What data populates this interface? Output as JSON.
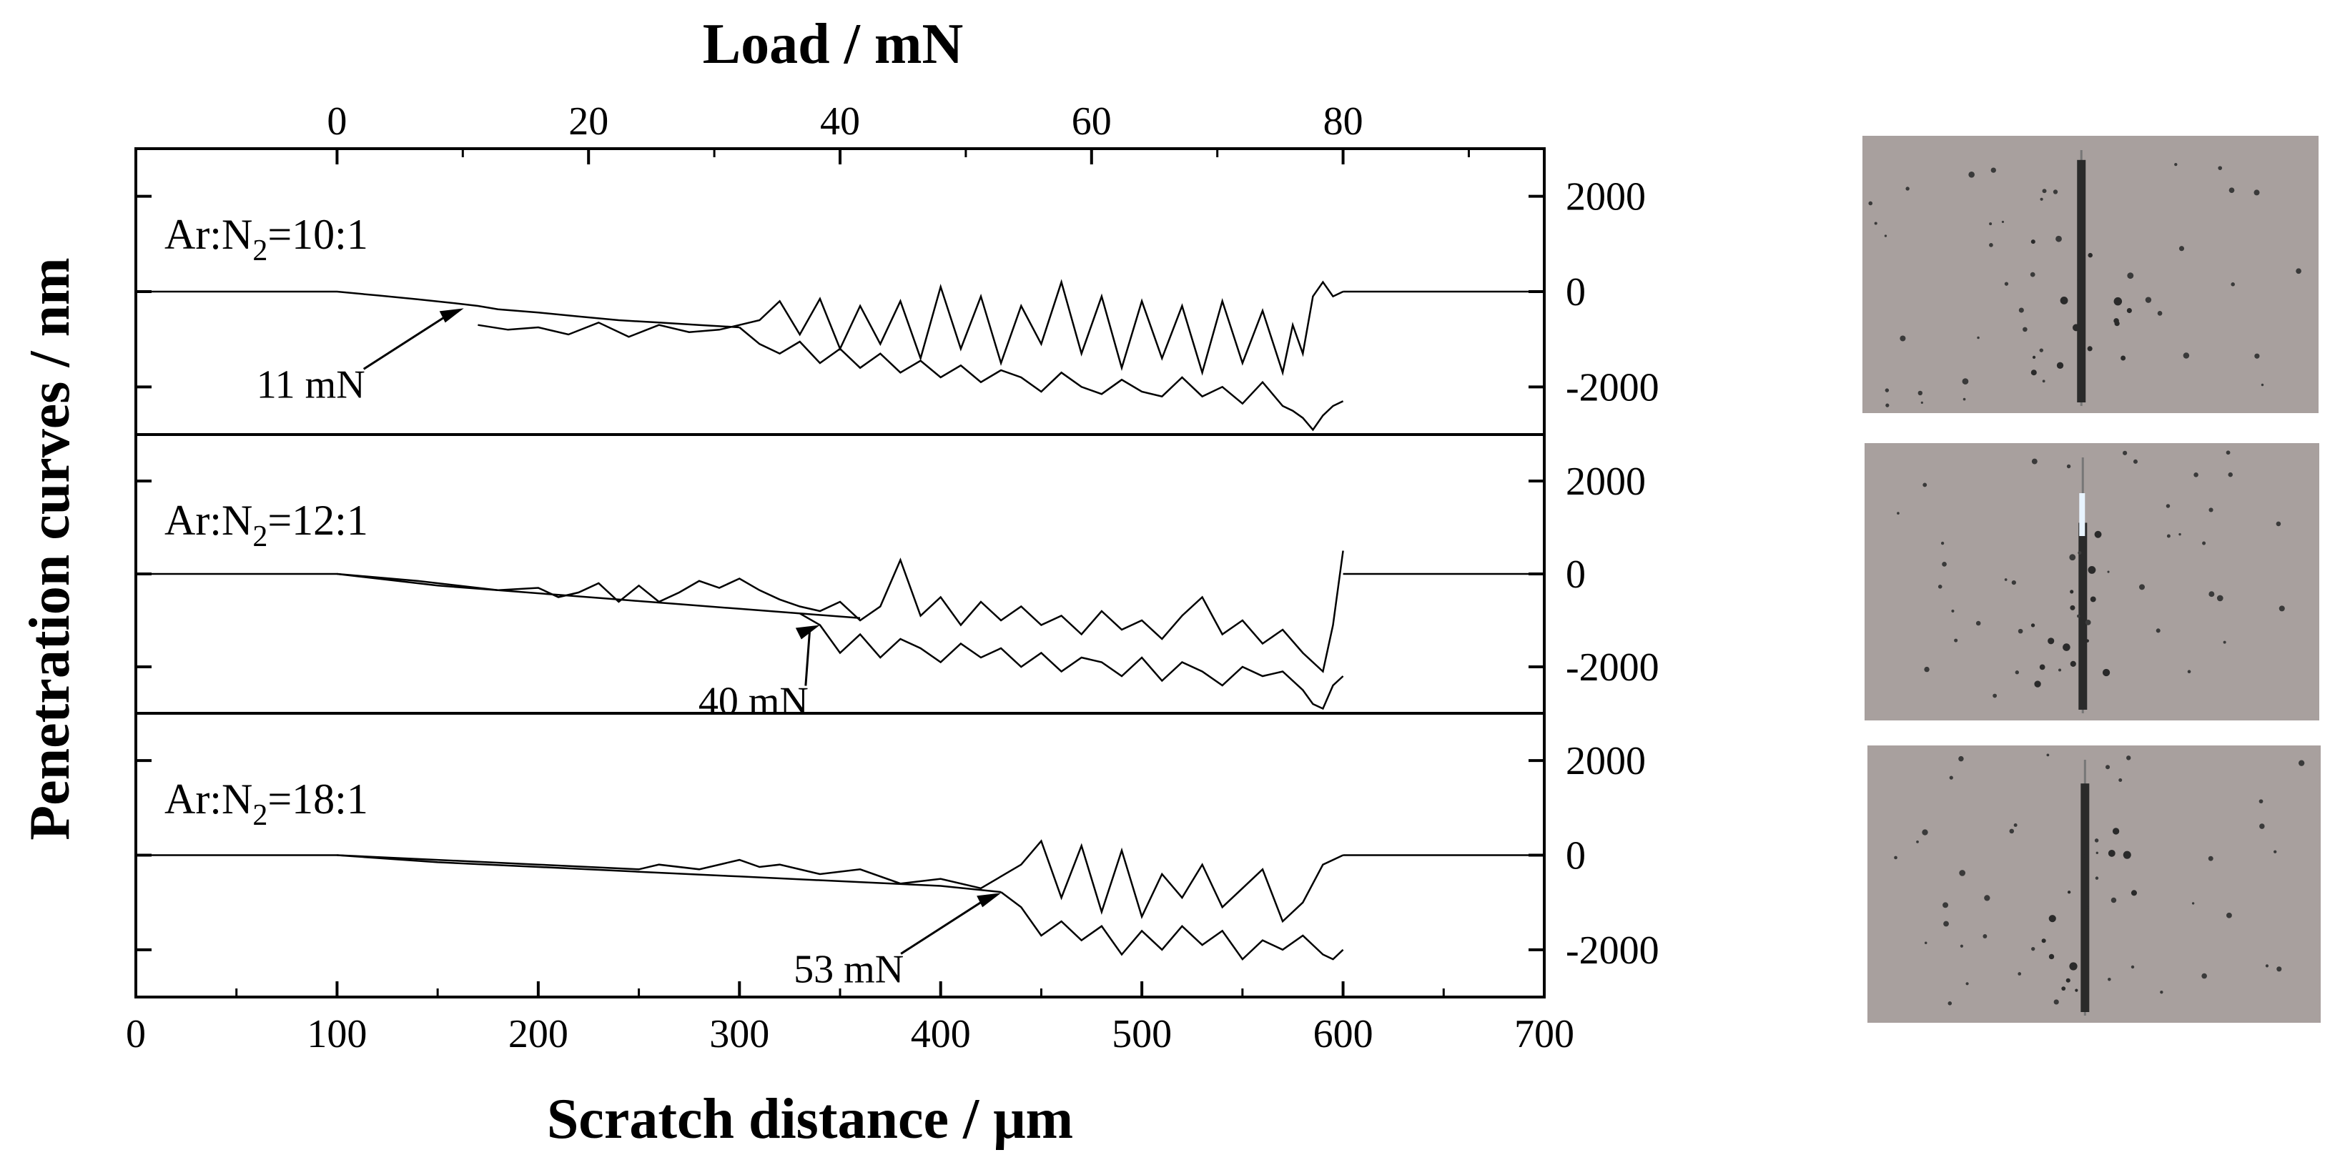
{
  "chart_data": {
    "type": "line",
    "xlabel": "Scratch distance / μm",
    "x2label": "Load / mN",
    "ylabel": "Penetration curves / nm",
    "xlim": [
      0,
      700
    ],
    "xticks": [
      0,
      100,
      200,
      300,
      400,
      500,
      600,
      700
    ],
    "x2ticks_load": [
      0,
      20,
      40,
      60,
      80
    ],
    "load_rate_mN_per_um": 0.16,
    "load_start_um": 100,
    "grid": false,
    "panels": [
      {
        "label_prefix": "Ar:N",
        "label_sub": "2",
        "label_suffix": "=10:1",
        "ylim": [
          -3000,
          3000
        ],
        "yticks": [
          2000,
          0,
          -2000
        ],
        "annotation": "11 mN",
        "annotation_target": [
          163,
          -350
        ],
        "series": [
          {
            "name": "",
            "x": [
              0,
              100,
              120,
              140,
              160,
              170,
              180,
              200,
              220,
              240,
              260,
              280,
              300
            ],
            "y": [
              0,
              0,
              -80,
              -160,
              -250,
              -300,
              -370,
              -440,
              -520,
              -600,
              -650,
              -700,
              -750
            ]
          },
          {
            "name": "",
            "x": [
              170,
              185,
              200,
              215,
              230,
              245,
              260,
              275,
              290,
              300,
              310,
              320,
              330,
              340,
              350,
              360,
              370,
              380,
              390,
              400,
              410,
              420,
              430,
              440,
              450,
              460,
              470,
              480,
              490,
              500,
              510,
              520,
              530,
              540,
              550,
              560,
              570,
              575,
              580,
              585,
              590,
              595,
              600
            ],
            "y": [
              -700,
              -800,
              -750,
              -900,
              -650,
              -950,
              -700,
              -850,
              -800,
              -700,
              -600,
              -200,
              -900,
              -150,
              -1200,
              -300,
              -1100,
              -200,
              -1400,
              100,
              -1200,
              -100,
              -1500,
              -300,
              -1100,
              200,
              -1300,
              -100,
              -1600,
              -200,
              -1400,
              -300,
              -1700,
              -200,
              -1500,
              -400,
              -1700,
              -700,
              -1300,
              -100,
              200,
              -100,
              0
            ]
          },
          {
            "name": "",
            "x": [
              300,
              310,
              320,
              330,
              340,
              350,
              360,
              370,
              380,
              390,
              400,
              410,
              420,
              430,
              440,
              450,
              460,
              470,
              480,
              490,
              500,
              510,
              520,
              530,
              540,
              550,
              560,
              570,
              575,
              580,
              585,
              590,
              595,
              600
            ],
            "y": [
              -750,
              -1100,
              -1300,
              -1050,
              -1500,
              -1200,
              -1600,
              -1300,
              -1700,
              -1450,
              -1800,
              -1550,
              -1900,
              -1650,
              -1800,
              -2100,
              -1700,
              -2000,
              -2150,
              -1850,
              -2100,
              -2200,
              -1800,
              -2200,
              -2000,
              -2350,
              -1900,
              -2400,
              -2500,
              -2650,
              -2900,
              -2600,
              -2400,
              -2300
            ]
          }
        ]
      },
      {
        "label_prefix": "Ar:N",
        "label_sub": "2",
        "label_suffix": "=12:1",
        "ylim": [
          -3000,
          3000
        ],
        "yticks": [
          2000,
          0,
          -2000
        ],
        "annotation": "40 mN",
        "annotation_target": [
          340,
          -1100
        ],
        "series": [
          {
            "name": "",
            "x": [
              0,
              100,
              120,
              150,
              180,
              210,
              240,
              270,
              300,
              330,
              360
            ],
            "y": [
              0,
              0,
              -100,
              -250,
              -350,
              -450,
              -550,
              -650,
              -750,
              -850,
              -950
            ]
          },
          {
            "name": "",
            "x": [
              100,
              140,
              180,
              200,
              210,
              220,
              230,
              240,
              250,
              260,
              270,
              280,
              290,
              300,
              310,
              320,
              330,
              340,
              350,
              360,
              370,
              380,
              390,
              400,
              410,
              420,
              430,
              440,
              450,
              460,
              470,
              480,
              490,
              500,
              510,
              520,
              530,
              540,
              550,
              560,
              570,
              580,
              590,
              595,
              600
            ],
            "y": [
              0,
              -150,
              -350,
              -300,
              -500,
              -400,
              -200,
              -600,
              -250,
              -600,
              -400,
              -150,
              -300,
              -100,
              -350,
              -550,
              -700,
              -800,
              -600,
              -1000,
              -700,
              300,
              -900,
              -500,
              -1100,
              -600,
              -1000,
              -700,
              -1100,
              -900,
              -1300,
              -800,
              -1200,
              -1000,
              -1400,
              -900,
              -500,
              -1300,
              -1000,
              -1500,
              -1200,
              -1700,
              -2100,
              -1100,
              500
            ]
          },
          {
            "name": "",
            "x": [
              330,
              340,
              350,
              360,
              370,
              380,
              390,
              400,
              410,
              420,
              430,
              440,
              450,
              460,
              470,
              480,
              490,
              500,
              510,
              520,
              530,
              540,
              550,
              560,
              570,
              580,
              585,
              590,
              595,
              600
            ],
            "y": [
              -850,
              -1100,
              -1700,
              -1300,
              -1800,
              -1400,
              -1600,
              -1900,
              -1500,
              -1800,
              -1600,
              -2000,
              -1700,
              -2100,
              -1800,
              -1900,
              -2200,
              -1800,
              -2300,
              -1900,
              -2100,
              -2400,
              -2000,
              -2200,
              -2100,
              -2500,
              -2800,
              -2900,
              -2400,
              -2200
            ]
          }
        ]
      },
      {
        "label_prefix": "Ar:N",
        "label_sub": "2",
        "label_suffix": "=18:1",
        "ylim": [
          -3000,
          3000
        ],
        "yticks": [
          2000,
          0,
          -2000
        ],
        "annotation": "53 mN",
        "annotation_target": [
          430,
          -800
        ],
        "series": [
          {
            "name": "",
            "x": [
              0,
              100,
              150,
              200,
              250,
              300,
              350,
              400,
              430
            ],
            "y": [
              0,
              0,
              -150,
              -250,
              -350,
              -450,
              -550,
              -650,
              -780
            ]
          },
          {
            "name": "",
            "x": [
              100,
              200,
              250,
              260,
              280,
              300,
              310,
              320,
              340,
              360,
              380,
              400,
              420,
              440,
              450,
              460,
              470,
              480,
              490,
              500,
              510,
              520,
              530,
              540,
              550,
              560,
              570,
              580,
              590,
              600
            ],
            "y": [
              0,
              -200,
              -300,
              -200,
              -300,
              -100,
              -250,
              -200,
              -400,
              -300,
              -600,
              -500,
              -700,
              -200,
              300,
              -900,
              200,
              -1200,
              100,
              -1300,
              -400,
              -900,
              -200,
              -1100,
              -700,
              -300,
              -1400,
              -1000,
              -200,
              0
            ]
          },
          {
            "name": "",
            "x": [
              430,
              440,
              450,
              460,
              470,
              480,
              490,
              500,
              510,
              520,
              530,
              540,
              550,
              560,
              570,
              580,
              590,
              595,
              600
            ],
            "y": [
              -780,
              -1100,
              -1700,
              -1400,
              -1800,
              -1500,
              -2100,
              -1600,
              -2000,
              -1500,
              -1900,
              -1600,
              -2200,
              -1800,
              -2000,
              -1700,
              -2100,
              -2200,
              -2000
            ]
          }
        ]
      }
    ]
  },
  "micrographs": [
    {
      "track_dark_length": 0.9
    },
    {
      "track_dark_length": 0.7
    },
    {
      "track_dark_length": 0.85
    }
  ],
  "colors": {
    "line": "#000000",
    "background": "#ffffff",
    "micrograph_bg": "#a8a09e",
    "track": "#2a2a2a",
    "highlight": "#e8f4ff"
  }
}
